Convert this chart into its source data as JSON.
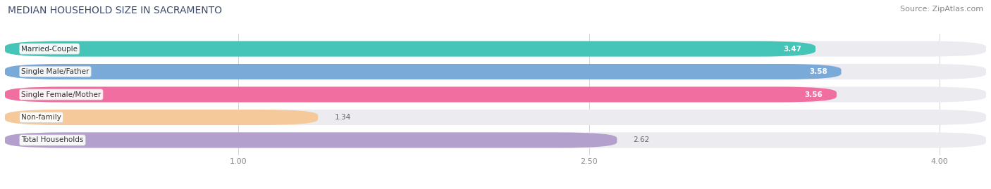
{
  "title": "MEDIAN HOUSEHOLD SIZE IN SACRAMENTO",
  "source": "Source: ZipAtlas.com",
  "categories": [
    "Married-Couple",
    "Single Male/Father",
    "Single Female/Mother",
    "Non-family",
    "Total Households"
  ],
  "values": [
    3.47,
    3.58,
    3.56,
    1.34,
    2.62
  ],
  "bar_colors": [
    "#45c4b8",
    "#7aaad8",
    "#f06fa0",
    "#f5c99a",
    "#b3a0cc"
  ],
  "label_colors": [
    "white",
    "white",
    "white",
    "dark",
    "dark"
  ],
  "xlim_min": 0.0,
  "xlim_max": 4.2,
  "xstart": 0.0,
  "xticks": [
    1.0,
    2.5,
    4.0
  ],
  "bg_color": "#ffffff",
  "bar_bg_color": "#ebebf0",
  "title_fontsize": 10,
  "source_fontsize": 8,
  "label_fontsize": 7.5,
  "value_fontsize": 7.5,
  "title_color": "#3d4a6b",
  "source_color": "#888888",
  "tick_color": "#888888",
  "value_color_dark": "#666666"
}
